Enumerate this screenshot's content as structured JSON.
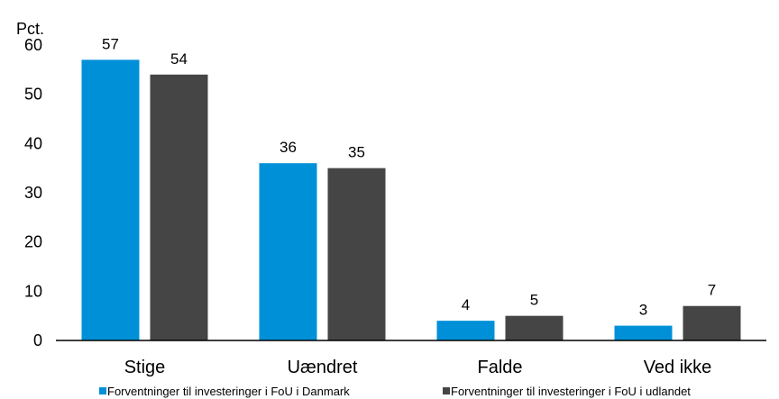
{
  "chart_data": {
    "type": "bar",
    "title": "",
    "ylabel": "Pct.",
    "xlabel": "",
    "categories": [
      "Stige",
      "Uændret",
      "Falde",
      "Ved ikke"
    ],
    "series": [
      {
        "name": "Forventninger til investeringer i FoU i Danmark",
        "values": [
          57,
          36,
          4,
          3
        ],
        "color": "#0090d8"
      },
      {
        "name": "Forventninger til investeringer i FoU i udlandet",
        "values": [
          54,
          35,
          5,
          7
        ],
        "color": "#454545"
      }
    ],
    "ylim": [
      0,
      60
    ],
    "yticks": [
      0,
      10,
      20,
      30,
      40,
      50,
      60
    ],
    "grid": false,
    "legend": "bottom"
  }
}
